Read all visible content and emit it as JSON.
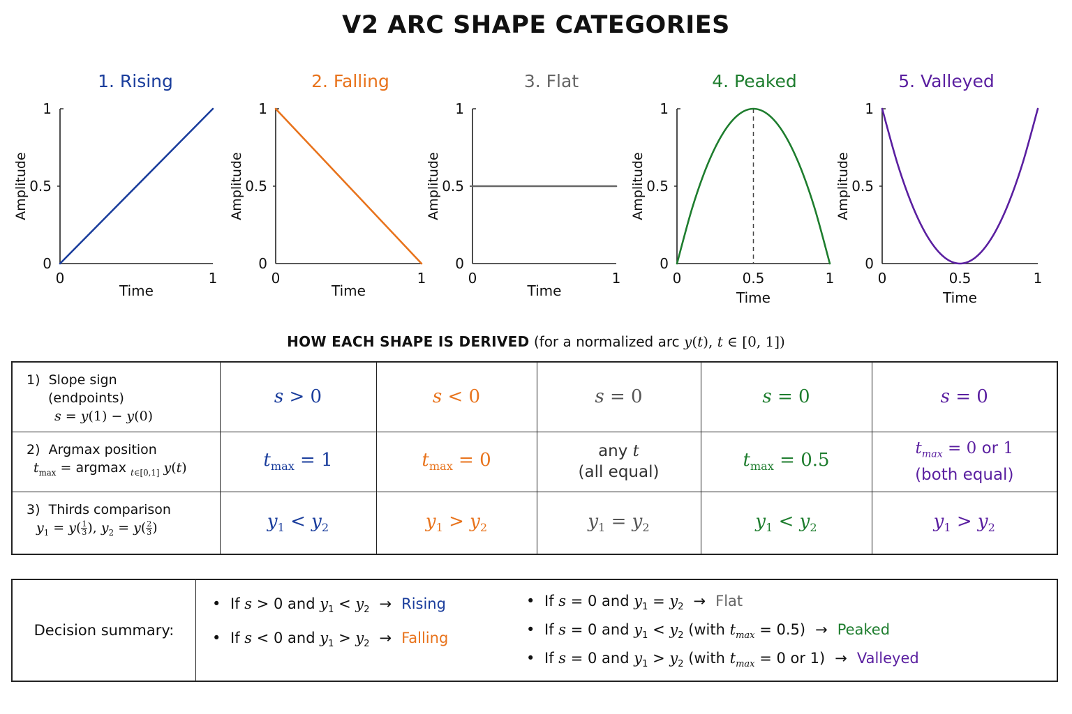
{
  "title": "V2 ARC SHAPE CATEGORIES",
  "colors": {
    "rising": "#1a3d9c",
    "falling": "#e8731c",
    "flat": "#666666",
    "peaked": "#1e7d2e",
    "valleyed": "#5a1fa0"
  },
  "chart_data": [
    {
      "type": "line",
      "title": "1. Rising",
      "xlabel": "Time",
      "ylabel": "Amplitude",
      "xlim": [
        0,
        1
      ],
      "ylim": [
        0,
        1
      ],
      "xticks": [
        "0",
        "1"
      ],
      "yticks": [
        "0",
        "0.5",
        "1"
      ],
      "x": [
        0,
        1
      ],
      "y": [
        0,
        1
      ],
      "color": "#1a3d9c"
    },
    {
      "type": "line",
      "title": "2. Falling",
      "xlabel": "Time",
      "ylabel": "Amplitude",
      "xlim": [
        0,
        1
      ],
      "ylim": [
        0,
        1
      ],
      "xticks": [
        "0",
        "1"
      ],
      "yticks": [
        "0",
        "0.5",
        "1"
      ],
      "x": [
        0,
        1
      ],
      "y": [
        1,
        0
      ],
      "color": "#e8731c"
    },
    {
      "type": "line",
      "title": "3. Flat",
      "xlabel": "Time",
      "ylabel": "Amplitude",
      "xlim": [
        0,
        1
      ],
      "ylim": [
        0,
        1
      ],
      "xticks": [
        "0",
        "1"
      ],
      "yticks": [
        "0",
        "0.5",
        "1"
      ],
      "x": [
        0,
        1
      ],
      "y": [
        0.5,
        0.5
      ],
      "color": "#666666"
    },
    {
      "type": "line",
      "title": "4. Peaked",
      "xlabel": "Time",
      "ylabel": "Amplitude",
      "xlim": [
        0,
        1
      ],
      "ylim": [
        0,
        1
      ],
      "xticks": [
        "0",
        "0.5",
        "1"
      ],
      "yticks": [
        "0",
        "0.5",
        "1"
      ],
      "x": [
        0,
        0.1,
        0.2,
        0.3,
        0.4,
        0.5,
        0.6,
        0.7,
        0.8,
        0.9,
        1
      ],
      "y": [
        0,
        0.36,
        0.64,
        0.84,
        0.96,
        1,
        0.96,
        0.84,
        0.64,
        0.36,
        0
      ],
      "marker_line_x": 0.5,
      "color": "#1e7d2e"
    },
    {
      "type": "line",
      "title": "5. Valleyed",
      "xlabel": "Time",
      "ylabel": "Amplitude",
      "xlim": [
        0,
        1
      ],
      "ylim": [
        0,
        1
      ],
      "xticks": [
        "0",
        "0.5",
        "1"
      ],
      "yticks": [
        "0",
        "0.5",
        "1"
      ],
      "x": [
        0,
        0.1,
        0.2,
        0.3,
        0.4,
        0.5,
        0.6,
        0.7,
        0.8,
        0.9,
        1
      ],
      "y": [
        1,
        0.64,
        0.36,
        0.16,
        0.04,
        0,
        0.04,
        0.16,
        0.36,
        0.64,
        1
      ],
      "color": "#5a1fa0"
    }
  ],
  "derivation": {
    "heading_caps": "HOW EACH SHAPE IS DERIVED",
    "heading_rest": "(for a normalized arc",
    "rows": [
      {
        "num": "1)",
        "name": "Slope sign",
        "name2": "(endpoints)"
      },
      {
        "num": "2)",
        "name": "Argmax position",
        "argmax_word": "argmax"
      },
      {
        "num": "3)",
        "name": "Thirds comparison"
      }
    ],
    "argmax": {
      "any": "any",
      "all_equal": "(all equal)",
      "or": "or",
      "both_equal": "(both equal)"
    }
  },
  "summary": {
    "label": "Decision summary:",
    "and": "and",
    "with": "(with",
    "or": "or",
    "rising": "Rising",
    "falling": "Falling",
    "flat": "Flat",
    "peaked": "Peaked",
    "valleyed": "Valleyed"
  }
}
